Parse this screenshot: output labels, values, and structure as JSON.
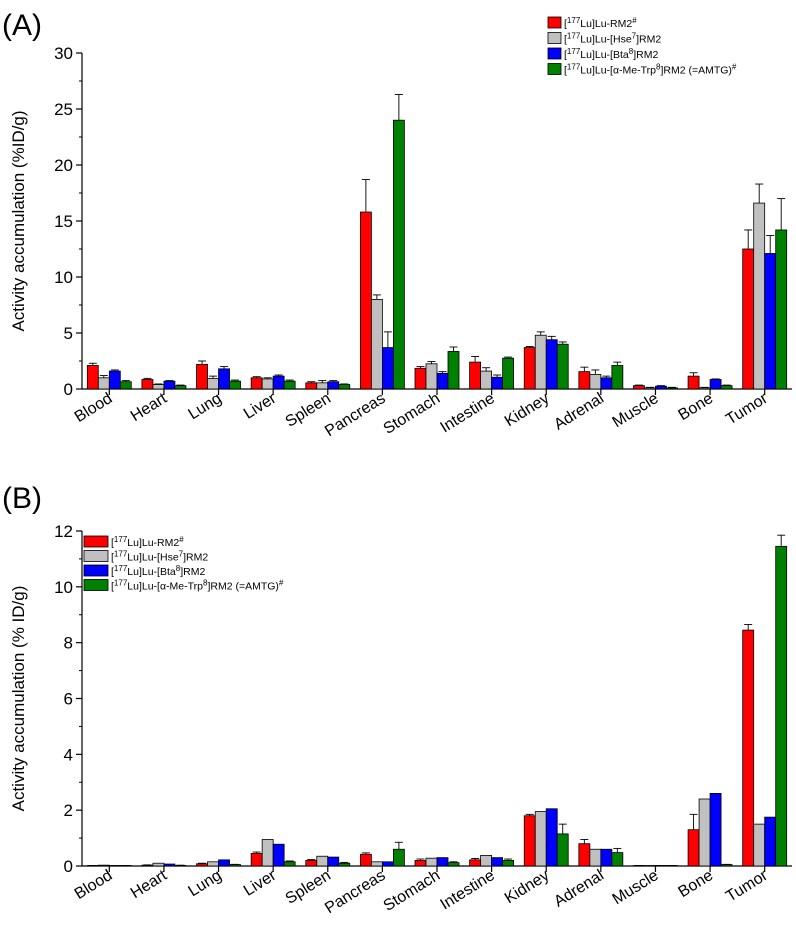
{
  "chart_data": [
    {
      "type": "bar",
      "panel_label": "(A)",
      "ylabel": "Activity accumulation (%ID/g)",
      "ylim": [
        0,
        30
      ],
      "yticks": [
        0,
        5,
        10,
        15,
        20,
        25,
        30
      ],
      "categories": [
        "Blood",
        "Heart",
        "Lung",
        "Liver",
        "Spleen",
        "Pancreas",
        "Stomach",
        "Intestine",
        "Kidney",
        "Adrenal",
        "Muscle",
        "Bone",
        "Tumor"
      ],
      "legend_position": "top-right",
      "series": [
        {
          "name": "[177Lu]Lu-RM2#",
          "color": "#ff0000",
          "values": [
            2.1,
            0.85,
            2.2,
            1.0,
            0.55,
            15.8,
            1.85,
            2.4,
            3.7,
            1.55,
            0.3,
            1.15,
            12.5
          ],
          "errors": [
            0.2,
            0.1,
            0.3,
            0.1,
            0.1,
            2.9,
            0.15,
            0.5,
            0.1,
            0.4,
            0.05,
            0.3,
            1.7
          ]
        },
        {
          "name": "[177Lu]Lu-[Hse7]RM2",
          "color": "#c0c0c0",
          "values": [
            1.0,
            0.4,
            0.95,
            0.9,
            0.55,
            8.0,
            2.25,
            1.6,
            4.8,
            1.3,
            0.1,
            0.1,
            16.6
          ],
          "errors": [
            0.2,
            0.05,
            0.2,
            0.1,
            0.2,
            0.4,
            0.2,
            0.3,
            0.3,
            0.4,
            0.05,
            0.05,
            1.7
          ]
        },
        {
          "name": "[177Lu]Lu-[Bta8]RM2",
          "color": "#0000ff",
          "values": [
            1.6,
            0.7,
            1.8,
            1.15,
            0.65,
            3.7,
            1.4,
            1.05,
            4.4,
            1.0,
            0.25,
            0.85,
            12.1
          ],
          "errors": [
            0.1,
            0.05,
            0.2,
            0.1,
            0.1,
            1.4,
            0.15,
            0.2,
            0.3,
            0.15,
            0.05,
            0.05,
            1.6
          ]
        },
        {
          "name": "[177Lu]Lu-[α-Me-Trp8]RM2 (=AMTG)#",
          "color": "#008000",
          "values": [
            0.65,
            0.3,
            0.7,
            0.7,
            0.4,
            24.0,
            3.35,
            2.75,
            4.0,
            2.1,
            0.1,
            0.3,
            14.2
          ],
          "errors": [
            0.1,
            0.05,
            0.1,
            0.1,
            0.05,
            2.3,
            0.4,
            0.1,
            0.2,
            0.3,
            0.05,
            0.05,
            2.8
          ]
        }
      ]
    },
    {
      "type": "bar",
      "panel_label": "(B)",
      "ylabel": "Activity accumulation (% ID/g)",
      "ylim": [
        0,
        12
      ],
      "yticks": [
        0,
        2,
        4,
        6,
        8,
        10,
        12
      ],
      "categories": [
        "Blood",
        "Heart",
        "Lung",
        "Liver",
        "Spleen",
        "Pancreas",
        "Stomach",
        "Intestine",
        "Kidney",
        "Adrenal",
        "Muscle",
        "Bone",
        "Tumor"
      ],
      "legend_position": "top-left",
      "series": [
        {
          "name": "[177Lu]Lu-RM2#",
          "color": "#ff0000",
          "values": [
            0.01,
            0.03,
            0.08,
            0.45,
            0.2,
            0.42,
            0.2,
            0.22,
            1.8,
            0.8,
            0.01,
            1.3,
            8.45
          ],
          "errors": [
            0.01,
            0.01,
            0.02,
            0.05,
            0.03,
            0.05,
            0.05,
            0.05,
            0.05,
            0.15,
            0.01,
            0.55,
            0.2
          ]
        },
        {
          "name": "[177Lu]Lu-[Hse7]RM2",
          "color": "#c0c0c0",
          "values": [
            0.03,
            0.1,
            0.15,
            0.95,
            0.35,
            0.15,
            0.28,
            0.38,
            1.95,
            0.6,
            0.01,
            2.4,
            1.5
          ]
        },
        {
          "name": "[177Lu]Lu-[Bta8]RM2",
          "color": "#0000ff",
          "values": [
            0.02,
            0.07,
            0.22,
            0.78,
            0.32,
            0.15,
            0.3,
            0.3,
            2.05,
            0.6,
            0.02,
            2.6,
            1.75
          ]
        },
        {
          "name": "[177Lu]Lu-[α-Me-Trp8]RM2 (=AMTG)#",
          "color": "#008000",
          "values": [
            0.01,
            0.02,
            0.05,
            0.15,
            0.1,
            0.6,
            0.12,
            0.2,
            1.15,
            0.48,
            0.01,
            0.05,
            11.45
          ],
          "errors": [
            0.01,
            0.01,
            0.01,
            0.03,
            0.03,
            0.25,
            0.03,
            0.05,
            0.35,
            0.15,
            0.01,
            0.01,
            0.4
          ]
        }
      ]
    }
  ]
}
